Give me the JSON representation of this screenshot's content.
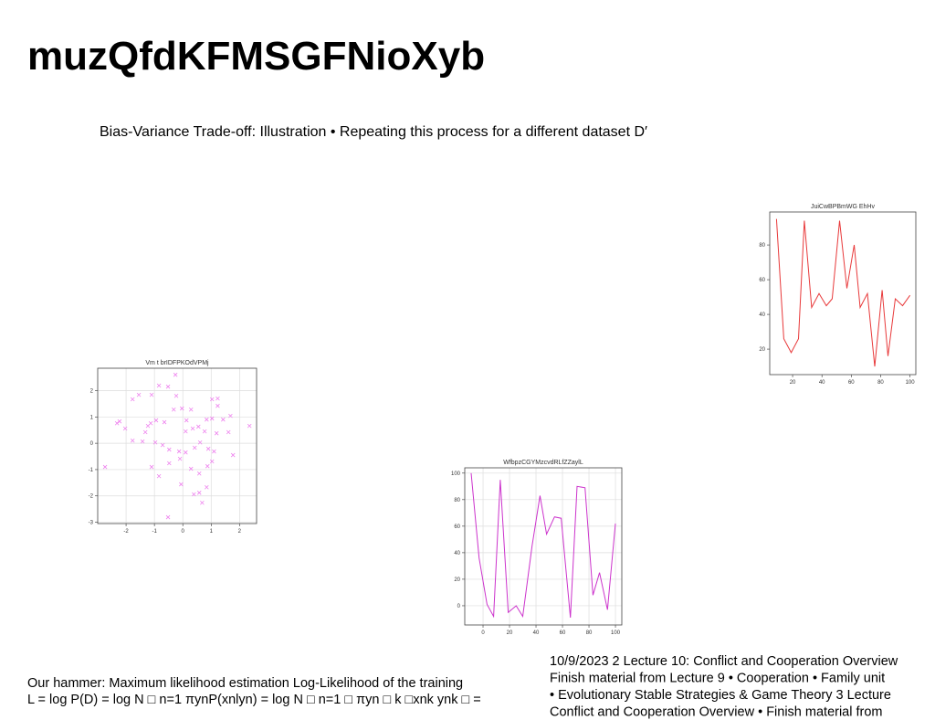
{
  "slide": {
    "title": "muzQfdKFMSGFNioXyb",
    "subtitle": "Bias-Variance Trade-off: Illustration • Repeating this process for a different dataset D′",
    "notes_left": [
      "Our hammer: Maximum likelihood estimation Log-Likelihood of the training",
      "L = log P(D) = log N □ n=1 πynP(xnlyn) = log N □ n=1 □ πyn □ k □xnk ynk □ ="
    ],
    "notes_right": [
      "10/9/2023 2 Lecture 10: Conflict and Cooperation Overview",
      "Finish material from Lecture 9 • Cooperation • Family unit",
      "• Evolutionary Stable Strategies & Game Theory 3 Lecture",
      "Conflict and Cooperation Overview • Finish material from"
    ]
  },
  "chart_data": [
    {
      "type": "line",
      "title": "JuiCwBPBmWG EhHv",
      "color": "#e8393a",
      "grid": false,
      "x": [
        9,
        14,
        19,
        24,
        28,
        33,
        38,
        43,
        47,
        52,
        57,
        62,
        66,
        71,
        76,
        81,
        85,
        90,
        95,
        100
      ],
      "values": [
        95,
        26,
        18,
        26,
        94,
        44,
        52,
        45,
        49,
        94,
        55,
        80,
        44,
        52,
        10,
        54,
        16,
        49,
        45,
        51
      ],
      "xlim": [
        4.4,
        104
      ],
      "ylim": [
        5.3,
        99
      ],
      "xticks": [
        20,
        40,
        60,
        80,
        100
      ],
      "yticks": [
        20,
        40,
        60,
        80
      ]
    },
    {
      "type": "scatter",
      "title": "Vm t brIDFPKOdVPMj",
      "color": "#ee82ee",
      "grid": true,
      "x": [
        -0.26,
        -0.52,
        -0.84,
        -1.55,
        -1.77,
        -1.1,
        -0.23,
        1.03,
        1.23,
        -0.03,
        0.29,
        1.23,
        -0.32,
        -2.23,
        -2.32,
        -1.23,
        -1.13,
        -0.65,
        0.13,
        0.84,
        1.03,
        1.42,
        1.68,
        2.35,
        0.35,
        0.55,
        0.77,
        1.19,
        1.61,
        -2.03,
        -1.77,
        -1.42,
        -0.97,
        -0.71,
        -0.48,
        -0.13,
        0.1,
        0.42,
        0.61,
        0.9,
        1.1,
        1.77,
        -2.74,
        -1.1,
        -0.84,
        -0.48,
        -0.1,
        0.29,
        0.58,
        0.87,
        1.03,
        -0.06,
        0.39,
        0.58,
        0.68,
        0.84,
        -0.52,
        -0.94,
        -1.32,
        0.1
      ],
      "values": [
        2.6,
        2.15,
        2.19,
        1.84,
        1.67,
        1.84,
        1.8,
        1.67,
        1.7,
        1.32,
        1.28,
        1.42,
        1.28,
        0.83,
        0.76,
        0.66,
        0.76,
        0.8,
        0.87,
        0.9,
        0.94,
        0.9,
        1.04,
        0.66,
        0.56,
        0.63,
        0.45,
        0.38,
        0.42,
        0.56,
        0.1,
        0.07,
        0.03,
        -0.07,
        -0.24,
        -0.31,
        -0.35,
        -0.17,
        0.03,
        -0.21,
        -0.31,
        -0.45,
        -0.9,
        -0.9,
        -1.25,
        -0.76,
        -0.59,
        -0.97,
        -1.15,
        -0.87,
        -0.69,
        -1.56,
        -1.94,
        -1.88,
        -2.26,
        -1.67,
        -2.81,
        0.87,
        0.42,
        0.45
      ],
      "xlim": [
        -3.0,
        2.6
      ],
      "ylim": [
        -3.05,
        2.85
      ],
      "xticks": [
        -2,
        -1,
        0,
        1,
        2
      ],
      "yticks": [
        -3,
        -2,
        -1,
        0,
        1,
        2
      ]
    },
    {
      "type": "line",
      "title": "WfbpzCGYMzcvdRLfZZaylL",
      "color": "#cc33cc",
      "grid": true,
      "x": [
        -9,
        -3,
        3,
        8,
        13,
        19,
        25,
        30,
        37,
        43,
        48,
        54,
        59,
        66,
        71,
        77,
        83,
        88,
        94,
        100
      ],
      "values": [
        100,
        36,
        1,
        -8,
        95,
        -5,
        0,
        -8,
        45,
        83,
        54,
        67,
        66,
        -9,
        90,
        89,
        8,
        25,
        -3,
        62
      ],
      "xlim": [
        -13.8,
        104.8
      ],
      "ylim": [
        -14.5,
        104
      ],
      "xticks": [
        0,
        20,
        40,
        60,
        80,
        100
      ],
      "yticks": [
        0,
        20,
        40,
        60,
        80,
        100
      ]
    }
  ]
}
